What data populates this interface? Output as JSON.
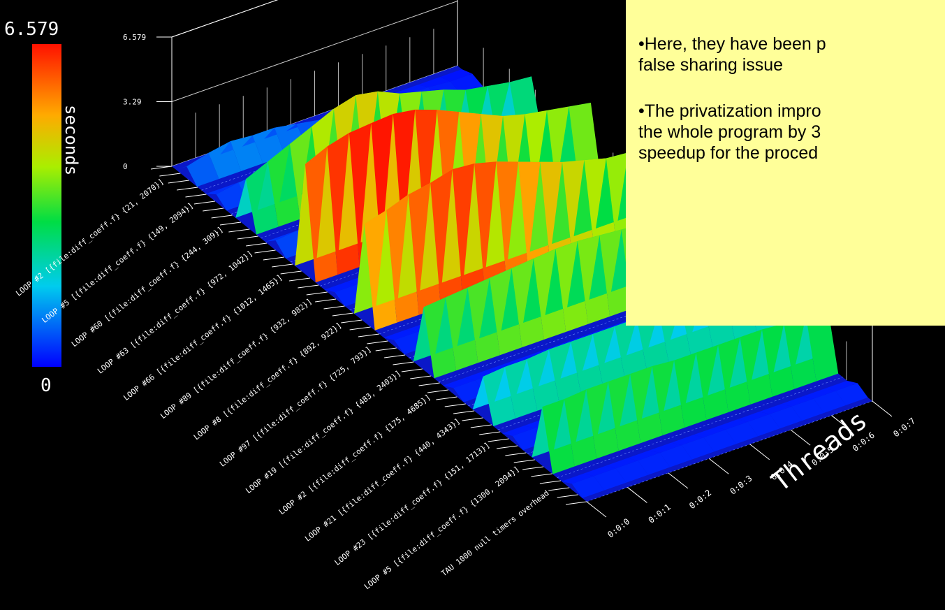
{
  "chart_data": {
    "type": "surface3d",
    "colorbar": {
      "max_label": "6.579",
      "min_label": "0",
      "title": "seconds"
    },
    "z_axis": {
      "ticks": [
        "6.579",
        "3.29",
        "0"
      ],
      "range": [
        0,
        6.579
      ]
    },
    "y_axis": {
      "title": "Threads",
      "ticks": [
        "0:0:0",
        "0:0:1",
        "0:0:2",
        "0:0:3",
        "0:0:4",
        "0:0:5",
        "0:0:6",
        "0:0:7"
      ]
    },
    "x_axis": {
      "tick_labels": [
        "LOOP #2 [{file:diff_coeff.f} {21, 2070}]",
        "LOOP #5 [{file:diff_coeff.f} {149, 2094}]",
        "LOOP #60 [{file:diff_coeff.f} {244, 309}]",
        "LOOP #63 [{file:diff_coeff.f} {972, 1042}]",
        "LOOP #66 [{file:diff_coeff.f} {1012, 1465}]",
        "LOOP #89 [{file:diff_coeff.f} {932, 982}]",
        "LOOP #8 [{file:diff_coeff.f} {892, 922}]",
        "LOOP #97 [{file:diff_coeff.f} {725, 793}]",
        "LOOP #19 [{file:diff_coeff.f} {483, 2403}]",
        "LOOP #2 [{file:diff_coeff.f} {175, 4685}]",
        "LOOP #21 [{file:diff_coeff.f} {440, 4343}]",
        "LOOP #23 [{file:diff_coeff.f} {151, 1713}]",
        "LOOP #5 [{file:diff_coeff.f} {1300, 2094}]",
        "TAU 1000 null timers overhead"
      ]
    },
    "z_profiles": [
      [
        0.6,
        0.9,
        1.1,
        1.0,
        1.0,
        0.8,
        0.6,
        0.5,
        0.4,
        0.3,
        0.3,
        0.3,
        0.2,
        0.2
      ],
      [
        0.4,
        0.6,
        0.7,
        0.7,
        0.7,
        0.6,
        0.5,
        0.4,
        0.3,
        0.3,
        0.2,
        0.2,
        0.2,
        0.2
      ],
      [
        2.4,
        2.9,
        3.4,
        3.9,
        4.4,
        4.7,
        4.5,
        4.0,
        3.7,
        3.4,
        3.0,
        2.8,
        2.6,
        2.5
      ],
      [
        0.5,
        0.6,
        0.7,
        0.7,
        0.7,
        0.6,
        0.6,
        0.5,
        0.5,
        0.4,
        0.4,
        0.4,
        0.3,
        0.3
      ],
      [
        5.6,
        6.1,
        6.4,
        6.5,
        6.579,
        6.4,
        6.0,
        5.5,
        5.0,
        4.5,
        4.2,
        4.0,
        3.8,
        3.6
      ],
      [
        0.3,
        0.3,
        0.3,
        0.3,
        0.3,
        0.3,
        0.2,
        0.2,
        0.2,
        0.2,
        0.2,
        0.2,
        0.2,
        0.2
      ],
      [
        5.0,
        5.3,
        5.7,
        5.9,
        6.2,
        6.1,
        5.8,
        5.4,
        5.0,
        4.6,
        4.3,
        4.0,
        3.9,
        3.8
      ],
      [
        0.3,
        0.3,
        0.3,
        0.3,
        0.3,
        0.3,
        0.2,
        0.2,
        0.2,
        0.2,
        0.2,
        0.2,
        0.2,
        0.2
      ],
      [
        3.2,
        3.3,
        3.4,
        3.5,
        3.6,
        3.7,
        3.8,
        3.8,
        3.7,
        3.6,
        3.5,
        3.4,
        3.3,
        3.2
      ],
      [
        0.3,
        0.3,
        0.3,
        0.3,
        0.3,
        0.3,
        0.3,
        0.3,
        0.3,
        0.3,
        0.3,
        0.3,
        0.3,
        0.3
      ],
      [
        2.1,
        2.2,
        2.2,
        2.3,
        2.3,
        2.3,
        2.3,
        2.3,
        2.3,
        2.2,
        2.2,
        2.2,
        2.1,
        2.1
      ],
      [
        0.3,
        0.3,
        0.3,
        0.3,
        0.3,
        0.3,
        0.3,
        0.3,
        0.3,
        0.3,
        0.3,
        0.3,
        0.3,
        0.3
      ],
      [
        3.0,
        3.0,
        3.1,
        3.1,
        3.1,
        3.1,
        3.0,
        3.0,
        3.0,
        3.0,
        3.0,
        2.9,
        2.9,
        2.9
      ],
      [
        0.3,
        0.3,
        0.3,
        0.3,
        0.3,
        0.3,
        0.3,
        0.3,
        0.3,
        0.3,
        0.3,
        0.3,
        0.3,
        0.3
      ]
    ]
  },
  "note": {
    "line1a": "•Here, they have been p",
    "line1b": "false sharing issue",
    "line2a": "•The privatization impro",
    "line2b": "the whole program by 3",
    "line2c": "speedup for the proced"
  }
}
